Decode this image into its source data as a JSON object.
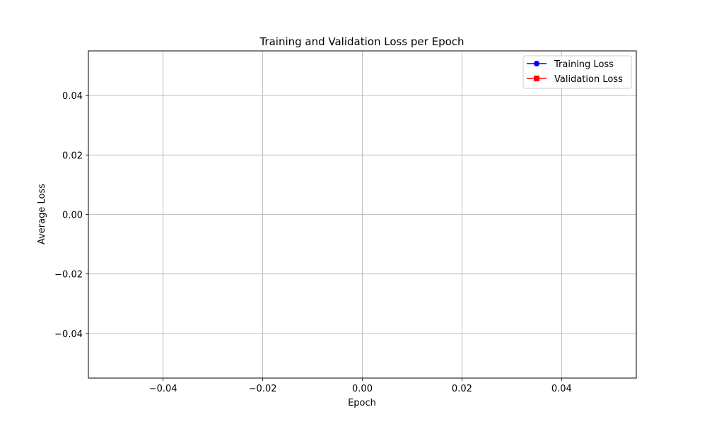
{
  "chart_data": {
    "type": "line",
    "title": "Training and Validation Loss per Epoch",
    "xlabel": "Epoch",
    "ylabel": "Average Loss",
    "xlim": [
      -0.055,
      0.055
    ],
    "ylim": [
      -0.055,
      0.055
    ],
    "x_ticks": [
      -0.04,
      -0.02,
      0.0,
      0.02,
      0.04
    ],
    "x_tick_labels": [
      "−0.04",
      "−0.02",
      "0.00",
      "0.02",
      "0.04"
    ],
    "y_ticks": [
      -0.04,
      -0.02,
      0.0,
      0.02,
      0.04
    ],
    "y_tick_labels": [
      "−0.04",
      "−0.02",
      "0.00",
      "0.02",
      "0.04"
    ],
    "grid": true,
    "legend_position": "top-right",
    "series": [
      {
        "name": "Training Loss",
        "color": "#0000ff",
        "marker": "circle",
        "x": [],
        "y": []
      },
      {
        "name": "Validation Loss",
        "color": "#ff0000",
        "marker": "square",
        "x": [],
        "y": []
      }
    ]
  }
}
